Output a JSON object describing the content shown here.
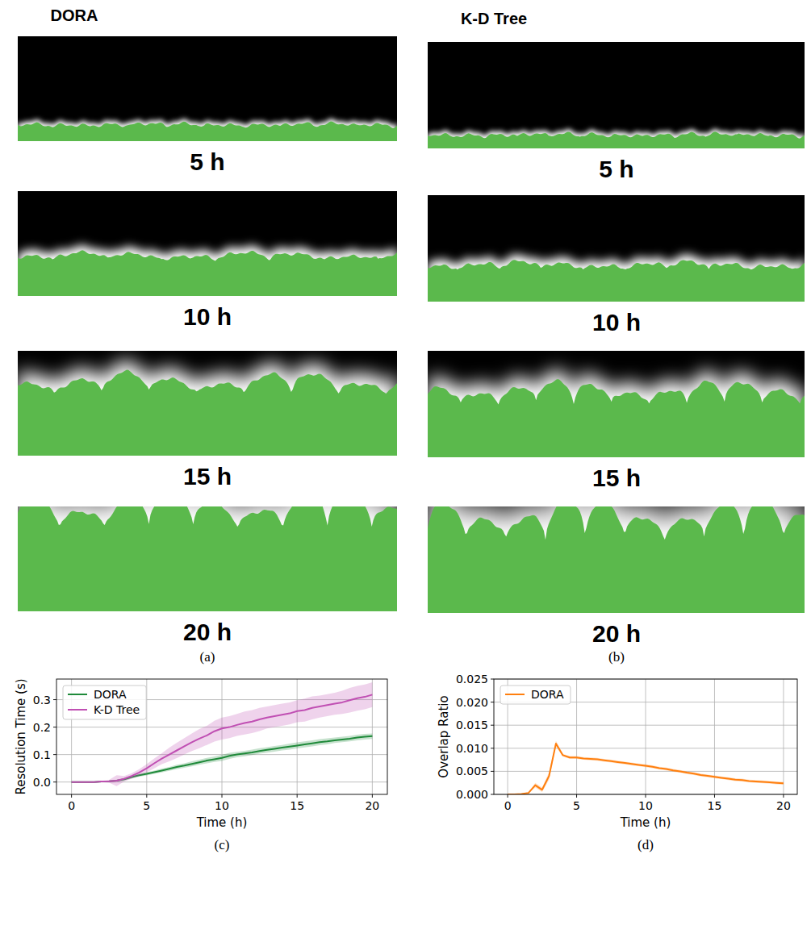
{
  "image_panels": [
    {
      "title": "DORA",
      "frames": [
        "5 h",
        "10 h",
        "15 h",
        "20 h"
      ],
      "panel_label": "(a)"
    },
    {
      "title": "K-D Tree",
      "frames": [
        "5 h",
        "10 h",
        "15 h",
        "20 h"
      ],
      "panel_label": "(b)"
    }
  ],
  "chart_data": [
    {
      "type": "line",
      "panel_label": "(c)",
      "x_label": "Time (h)",
      "y_label": "Resolution Time (s)",
      "x": [
        0,
        0.5,
        1,
        1.5,
        2,
        2.5,
        3,
        3.5,
        4,
        4.5,
        5,
        5.5,
        6,
        6.5,
        7,
        7.5,
        8,
        8.5,
        9,
        9.5,
        10,
        10.5,
        11,
        11.5,
        12,
        12.5,
        13,
        13.5,
        14,
        14.5,
        15,
        15.5,
        16,
        16.5,
        17,
        17.5,
        18,
        18.5,
        19,
        19.5,
        20
      ],
      "series": [
        {
          "name": "DORA",
          "color": "#1f8a3a",
          "values": [
            0,
            0,
            0,
            0,
            0.002,
            0.003,
            0.005,
            0.01,
            0.018,
            0.025,
            0.03,
            0.036,
            0.042,
            0.048,
            0.055,
            0.06,
            0.066,
            0.072,
            0.078,
            0.083,
            0.088,
            0.095,
            0.1,
            0.104,
            0.108,
            0.113,
            0.117,
            0.121,
            0.125,
            0.129,
            0.133,
            0.137,
            0.141,
            0.145,
            0.148,
            0.152,
            0.155,
            0.158,
            0.162,
            0.165,
            0.167
          ],
          "error": [
            0,
            0,
            0,
            0,
            0.001,
            0.002,
            0.003,
            0.005,
            0.005,
            0.005,
            0.006,
            0.006,
            0.007,
            0.007,
            0.008,
            0.008,
            0.009,
            0.009,
            0.01,
            0.01,
            0.011,
            0.011,
            0.01,
            0.01,
            0.01,
            0.01,
            0.01,
            0.01,
            0.01,
            0.011,
            0.011,
            0.011,
            0.011,
            0.011,
            0.011,
            0.01,
            0.01,
            0.01,
            0.01,
            0.01,
            0.01
          ]
        },
        {
          "name": "K-D Tree",
          "color": "#c04fb3",
          "values": [
            0,
            0,
            0,
            0,
            0.002,
            0.003,
            0.005,
            0.012,
            0.022,
            0.035,
            0.05,
            0.068,
            0.085,
            0.1,
            0.115,
            0.13,
            0.145,
            0.158,
            0.17,
            0.185,
            0.195,
            0.2,
            0.208,
            0.215,
            0.22,
            0.228,
            0.235,
            0.24,
            0.245,
            0.25,
            0.258,
            0.262,
            0.27,
            0.275,
            0.28,
            0.285,
            0.29,
            0.298,
            0.305,
            0.31,
            0.318
          ],
          "error": [
            0,
            0,
            0,
            0,
            0.002,
            0.005,
            0.02,
            0.01,
            0.01,
            0.012,
            0.015,
            0.018,
            0.02,
            0.025,
            0.028,
            0.03,
            0.032,
            0.035,
            0.035,
            0.038,
            0.04,
            0.04,
            0.04,
            0.042,
            0.042,
            0.042,
            0.04,
            0.04,
            0.04,
            0.04,
            0.04,
            0.042,
            0.042,
            0.04,
            0.04,
            0.04,
            0.042,
            0.045,
            0.045,
            0.045,
            0.045
          ]
        }
      ],
      "xlim": [
        -1,
        21
      ],
      "xticks": [
        0,
        5,
        10,
        15,
        20
      ],
      "ylim": [
        -0.045,
        0.375
      ],
      "yticks": [
        {
          "value": 0,
          "label": "0.0"
        },
        0.1,
        0.2,
        0.3
      ],
      "grid": true,
      "legend": "upper left"
    },
    {
      "type": "line",
      "panel_label": "(d)",
      "x_label": "Time (h)",
      "y_label": "Overlap Ratio",
      "x": [
        0,
        0.5,
        1,
        1.5,
        2,
        2.5,
        3,
        3.5,
        4,
        4.5,
        5,
        5.5,
        6,
        6.5,
        7,
        7.5,
        8,
        8.5,
        9,
        9.5,
        10,
        10.5,
        11,
        11.5,
        12,
        12.5,
        13,
        13.5,
        14,
        14.5,
        15,
        15.5,
        16,
        16.5,
        17,
        17.5,
        18,
        18.5,
        19,
        19.5,
        20
      ],
      "series": [
        {
          "name": "DORA",
          "color": "#ff7f0e",
          "values": [
            0,
            0,
            0.0001,
            0.0003,
            0.002,
            0.001,
            0.004,
            0.011,
            0.0085,
            0.008,
            0.008,
            0.0078,
            0.0077,
            0.0076,
            0.0074,
            0.0072,
            0.007,
            0.0068,
            0.0066,
            0.0064,
            0.0062,
            0.006,
            0.0057,
            0.0055,
            0.0052,
            0.005,
            0.0047,
            0.0045,
            0.0042,
            0.004,
            0.0038,
            0.0036,
            0.0034,
            0.0032,
            0.0031,
            0.0029,
            0.0028,
            0.0027,
            0.0026,
            0.0025,
            0.0024
          ],
          "error": [
            0,
            0,
            0,
            0,
            0.0005,
            0.0005,
            0.0008,
            0.0006,
            0.0003,
            0.0003,
            0.0003,
            0.0003,
            0.0003,
            0.0003,
            0.0003,
            0.0003,
            0.0003,
            0.0003,
            0.0003,
            0.0003,
            0.0003,
            0.0003,
            0.0003,
            0.0003,
            0.0003,
            0.0003,
            0.0003,
            0.0003,
            0.0003,
            0.0003,
            0.0003,
            0.0003,
            0.0003,
            0.0003,
            0.0003,
            0.0003,
            0.0003,
            0.0003,
            0.0003,
            0.0003,
            0.0003
          ]
        }
      ],
      "xlim": [
        -1,
        21
      ],
      "xticks": [
        0,
        5,
        10,
        15,
        20
      ],
      "ylim": [
        0,
        0.025
      ],
      "yticks": [
        {
          "value": 0,
          "label": "0.000"
        },
        {
          "value": 0.005,
          "label": "0.005"
        },
        {
          "value": 0.01,
          "label": "0.010"
        },
        {
          "value": 0.015,
          "label": "0.015"
        },
        {
          "value": 0.02,
          "label": "0.020"
        },
        {
          "value": 0.025,
          "label": "0.025"
        }
      ],
      "grid": true,
      "legend": "upper left"
    }
  ]
}
